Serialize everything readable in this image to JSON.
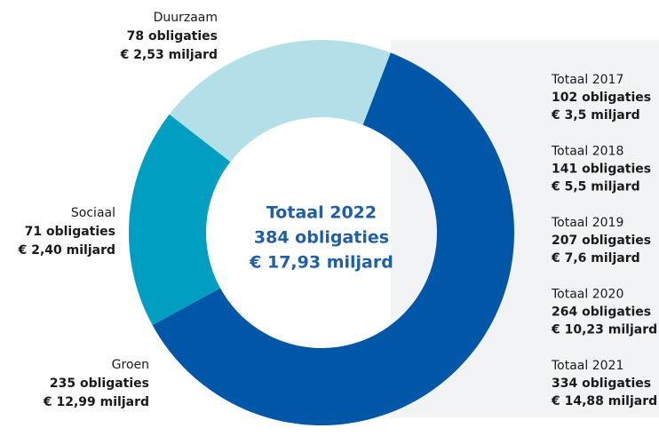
{
  "chart_data": {
    "type": "donut",
    "categories": [
      "Groen",
      "Sociaal",
      "Duurzaam"
    ],
    "values": [
      235,
      71,
      78
    ],
    "value_labels": [
      "235 obligaties",
      "71 obligaties",
      "78 obligaties"
    ],
    "amount_labels": [
      "€ 12,99 miljard",
      "€ 2,40 miljard",
      "€ 2,53 miljard"
    ],
    "colors": [
      "#0057a8",
      "#009fc2",
      "#b3dfe8"
    ],
    "center_text": [
      "Totaal 2022",
      "384 obligaties",
      "€ 17,93 miljard"
    ],
    "history": [
      {
        "title": "Totaal 2017",
        "count": "102 obligaties",
        "amount": "€ 3,5 miljard"
      },
      {
        "title": "Totaal 2018",
        "count": "141 obligaties",
        "amount": "€ 5,5 miljard"
      },
      {
        "title": "Totaal 2019",
        "count": "207 obligaties",
        "amount": "€ 7,6 miljard"
      },
      {
        "title": "Totaal 2020",
        "count": "264 obligaties",
        "amount": "€ 10,23 miljard"
      },
      {
        "title": "Totaal 2021",
        "count": "334 obligaties",
        "amount": "€ 14,88 miljard"
      }
    ]
  }
}
